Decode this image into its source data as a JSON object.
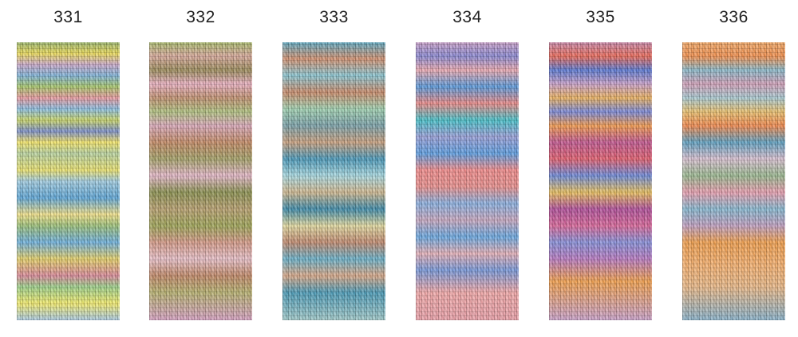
{
  "swatches": [
    {
      "label": "331"
    },
    {
      "label": "332"
    },
    {
      "label": "333"
    },
    {
      "label": "334"
    },
    {
      "label": "335"
    },
    {
      "label": "336"
    }
  ]
}
